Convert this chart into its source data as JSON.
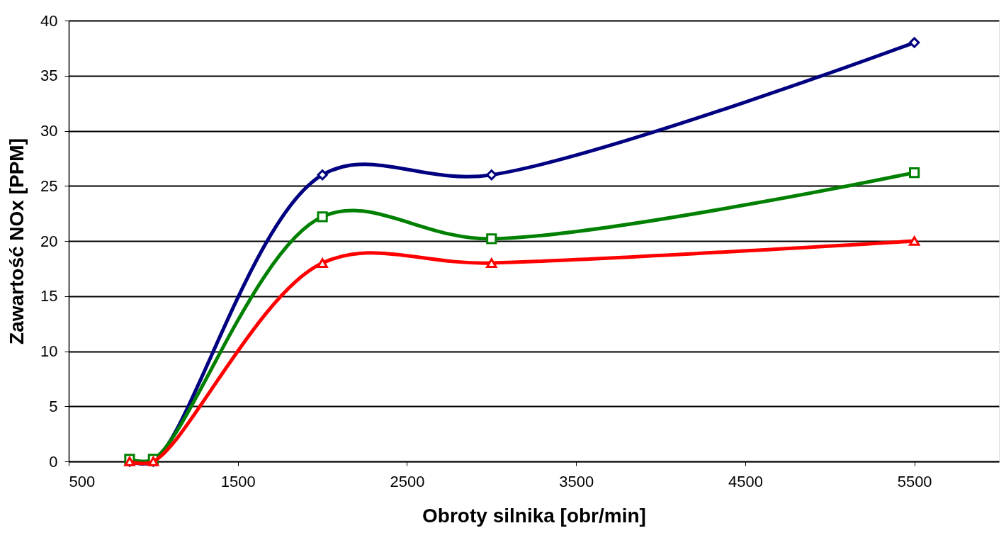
{
  "chart_data": {
    "type": "line",
    "xlabel": "Obroty silnika [obr/min]",
    "ylabel": "Zawartość NOx [PPM]",
    "xlim": [
      500,
      6000
    ],
    "xticks": [
      500,
      1500,
      2500,
      3500,
      4500,
      5500
    ],
    "ylim": [
      0,
      40
    ],
    "yticks": [
      0,
      5,
      10,
      15,
      20,
      25,
      30,
      35,
      40
    ],
    "grid": "y",
    "series": [
      {
        "color": "#000080",
        "marker": "diamond",
        "x": [
          860,
          1000,
          2000,
          3000,
          5500
        ],
        "values": [
          0,
          0,
          26,
          26,
          38
        ]
      },
      {
        "color": "#008000",
        "marker": "square",
        "x": [
          860,
          1000,
          2000,
          3000,
          5500
        ],
        "values": [
          0.2,
          0.2,
          22.2,
          20.2,
          26.2
        ]
      },
      {
        "color": "#ff0000",
        "marker": "triangle",
        "x": [
          860,
          1000,
          2000,
          3000,
          5500
        ],
        "values": [
          0,
          0,
          18,
          18,
          20
        ]
      }
    ]
  }
}
